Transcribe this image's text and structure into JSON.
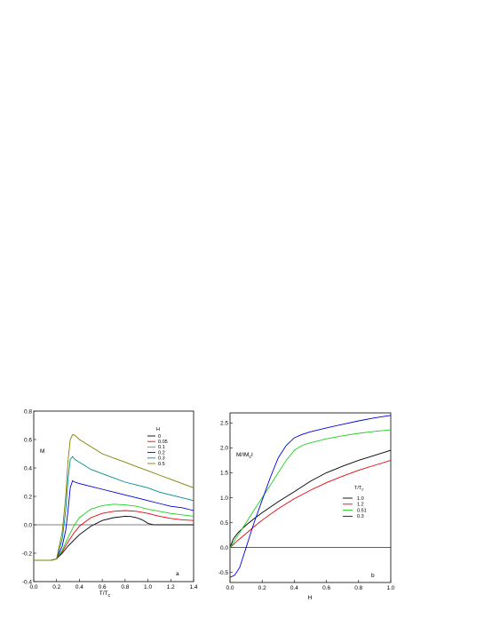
{
  "chart_data": [
    {
      "type": "line",
      "panel_letter": "a",
      "ylabel": "M",
      "xlabel_main": "T/T",
      "xlabel_sub": "c",
      "xlim": [
        0.0,
        1.4
      ],
      "ylim": [
        -0.4,
        0.8
      ],
      "xticks": [
        "0.0",
        "0.2",
        "0.4",
        "0.6",
        "0.8",
        "1.0",
        "1.2",
        "1.4"
      ],
      "yticks": [
        "-0.4",
        "-0.2",
        "0.0",
        "0.2",
        "0.4",
        "0.6",
        "0.8"
      ],
      "legend_title": "H",
      "legend_position": "top-right",
      "series": [
        {
          "name": "0",
          "color": "#000000",
          "x": [
            0.0,
            0.15,
            0.2,
            0.25,
            0.3,
            0.35,
            0.4,
            0.5,
            0.6,
            0.7,
            0.8,
            0.85,
            0.9,
            0.95,
            1.0,
            1.05,
            1.1,
            1.2,
            1.3,
            1.4
          ],
          "y": [
            -0.25,
            -0.25,
            -0.24,
            -0.2,
            -0.15,
            -0.11,
            -0.07,
            -0.01,
            0.03,
            0.05,
            0.06,
            0.058,
            0.05,
            0.035,
            0.01,
            0.0,
            0.0,
            0.0,
            0.0,
            0.0
          ]
        },
        {
          "name": "0.05",
          "color": "#e8000b",
          "x": [
            0.0,
            0.15,
            0.2,
            0.25,
            0.3,
            0.35,
            0.4,
            0.5,
            0.6,
            0.7,
            0.8,
            0.9,
            1.0,
            1.1,
            1.2,
            1.3,
            1.4
          ],
          "y": [
            -0.25,
            -0.25,
            -0.24,
            -0.19,
            -0.12,
            -0.06,
            -0.01,
            0.05,
            0.08,
            0.095,
            0.1,
            0.095,
            0.08,
            0.06,
            0.045,
            0.035,
            0.03
          ]
        },
        {
          "name": "0.1",
          "color": "#1ed01e",
          "x": [
            0.0,
            0.15,
            0.2,
            0.25,
            0.3,
            0.35,
            0.4,
            0.5,
            0.6,
            0.7,
            0.8,
            0.9,
            1.0,
            1.1,
            1.2,
            1.3,
            1.4
          ],
          "y": [
            -0.25,
            -0.25,
            -0.24,
            -0.18,
            -0.09,
            -0.01,
            0.05,
            0.11,
            0.135,
            0.145,
            0.14,
            0.13,
            0.11,
            0.095,
            0.08,
            0.07,
            0.06
          ]
        },
        {
          "name": "0.2",
          "color": "#0000e0",
          "x": [
            0.0,
            0.15,
            0.2,
            0.25,
            0.28,
            0.3,
            0.32,
            0.34,
            0.36,
            0.4,
            0.5,
            0.6,
            0.7,
            0.8,
            0.9,
            1.0,
            1.1,
            1.2,
            1.3,
            1.4
          ],
          "y": [
            -0.25,
            -0.25,
            -0.24,
            -0.15,
            -0.04,
            0.1,
            0.26,
            0.31,
            0.3,
            0.29,
            0.27,
            0.25,
            0.23,
            0.21,
            0.19,
            0.17,
            0.15,
            0.13,
            0.12,
            0.1
          ]
        },
        {
          "name": "0.3",
          "color": "#008b8b",
          "x": [
            0.0,
            0.15,
            0.2,
            0.25,
            0.28,
            0.3,
            0.32,
            0.34,
            0.36,
            0.4,
            0.5,
            0.6,
            0.7,
            0.8,
            0.9,
            1.0,
            1.1,
            1.2,
            1.3,
            1.4
          ],
          "y": [
            -0.25,
            -0.25,
            -0.24,
            -0.1,
            0.1,
            0.32,
            0.46,
            0.48,
            0.46,
            0.44,
            0.39,
            0.36,
            0.33,
            0.3,
            0.28,
            0.26,
            0.23,
            0.21,
            0.19,
            0.17
          ]
        },
        {
          "name": "0.5",
          "color": "#808000",
          "x": [
            0.0,
            0.15,
            0.2,
            0.25,
            0.28,
            0.3,
            0.32,
            0.34,
            0.36,
            0.4,
            0.5,
            0.6,
            0.7,
            0.8,
            0.9,
            1.0,
            1.1,
            1.2,
            1.3,
            1.4
          ],
          "y": [
            -0.25,
            -0.25,
            -0.24,
            -0.05,
            0.2,
            0.45,
            0.6,
            0.635,
            0.63,
            0.6,
            0.55,
            0.5,
            0.47,
            0.44,
            0.41,
            0.38,
            0.35,
            0.32,
            0.29,
            0.26
          ]
        }
      ],
      "reference_line_y": 0.0
    },
    {
      "type": "line",
      "panel_letter": "b",
      "ylabel_main": "M/IM",
      "ylabel_sub": "c",
      "ylabel_tail": "I",
      "xlabel": "H",
      "xlim": [
        0.0,
        1.0
      ],
      "ylim": [
        -0.7,
        2.7
      ],
      "xticks": [
        "0.0",
        "0.2",
        "0.4",
        "0.6",
        "0.8",
        "1.0"
      ],
      "yticks": [
        "-0.5",
        "0.0",
        "0.5",
        "1.0",
        "1.5",
        "2.0",
        "2.5"
      ],
      "legend_title_main": "T/T",
      "legend_title_sub": "c",
      "legend_position": "center-right",
      "series": [
        {
          "name": "1.0",
          "color": "#000000",
          "x": [
            0.0,
            0.02,
            0.05,
            0.1,
            0.15,
            0.2,
            0.3,
            0.4,
            0.5,
            0.6,
            0.7,
            0.8,
            0.9,
            1.0
          ],
          "y": [
            0.0,
            0.17,
            0.3,
            0.45,
            0.58,
            0.7,
            0.92,
            1.12,
            1.33,
            1.5,
            1.63,
            1.75,
            1.85,
            1.95
          ]
        },
        {
          "name": "1.2",
          "color": "#e8000b",
          "x": [
            0.0,
            0.05,
            0.1,
            0.15,
            0.2,
            0.3,
            0.4,
            0.5,
            0.6,
            0.7,
            0.8,
            0.9,
            1.0
          ],
          "y": [
            0.0,
            0.15,
            0.28,
            0.42,
            0.55,
            0.78,
            0.98,
            1.15,
            1.3,
            1.43,
            1.55,
            1.65,
            1.75
          ]
        },
        {
          "name": "0.51",
          "color": "#1ed01e",
          "x": [
            0.0,
            0.05,
            0.1,
            0.15,
            0.2,
            0.25,
            0.3,
            0.35,
            0.4,
            0.45,
            0.5,
            0.6,
            0.7,
            0.8,
            0.9,
            1.0
          ],
          "y": [
            0.0,
            0.25,
            0.5,
            0.75,
            1.0,
            1.25,
            1.5,
            1.75,
            1.95,
            2.05,
            2.1,
            2.18,
            2.24,
            2.29,
            2.33,
            2.36
          ]
        },
        {
          "name": "0.3",
          "color": "#0000e0",
          "x": [
            0.0,
            0.03,
            0.06,
            0.08,
            0.1,
            0.12,
            0.15,
            0.2,
            0.25,
            0.3,
            0.35,
            0.4,
            0.45,
            0.5,
            0.6,
            0.7,
            0.8,
            0.9,
            1.0
          ],
          "y": [
            -0.6,
            -0.55,
            -0.4,
            -0.2,
            0.0,
            0.2,
            0.5,
            0.95,
            1.4,
            1.8,
            2.05,
            2.2,
            2.27,
            2.32,
            2.4,
            2.47,
            2.54,
            2.6,
            2.65
          ]
        }
      ],
      "reference_line_y": 0.0
    }
  ]
}
